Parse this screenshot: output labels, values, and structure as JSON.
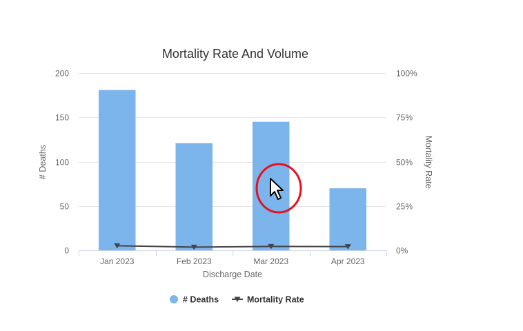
{
  "chart_data": {
    "type": "bar",
    "title": "Mortality Rate And Volume",
    "xlabel": "Discharge Date",
    "ylabel": "# Deaths",
    "y2label": "Mortality Rate",
    "categories": [
      "Jan 2023",
      "Feb 2023",
      "Mar 2023",
      "Apr 2023"
    ],
    "ylim": [
      0,
      200
    ],
    "yticks": [
      "0",
      "50",
      "100",
      "150",
      "200"
    ],
    "y2lim": [
      0,
      100
    ],
    "y2ticks": [
      "0%",
      "25%",
      "50%",
      "75%",
      "100%"
    ],
    "grid": true,
    "legend_position": "bottom",
    "series": [
      {
        "name": "# Deaths",
        "type": "bar",
        "axis": "left",
        "color": "#7cb5ec",
        "values": [
          181,
          121,
          145,
          70
        ]
      },
      {
        "name": "Mortality Rate",
        "type": "line",
        "axis": "right",
        "color": "#434348",
        "marker": "triangle-down",
        "values": [
          2.6,
          1.8,
          2.2,
          2.1
        ]
      }
    ]
  },
  "annotation": {
    "type": "cursor-highlight",
    "shape": "ellipse",
    "color": "#e8101a",
    "category": "Mar 2023"
  }
}
